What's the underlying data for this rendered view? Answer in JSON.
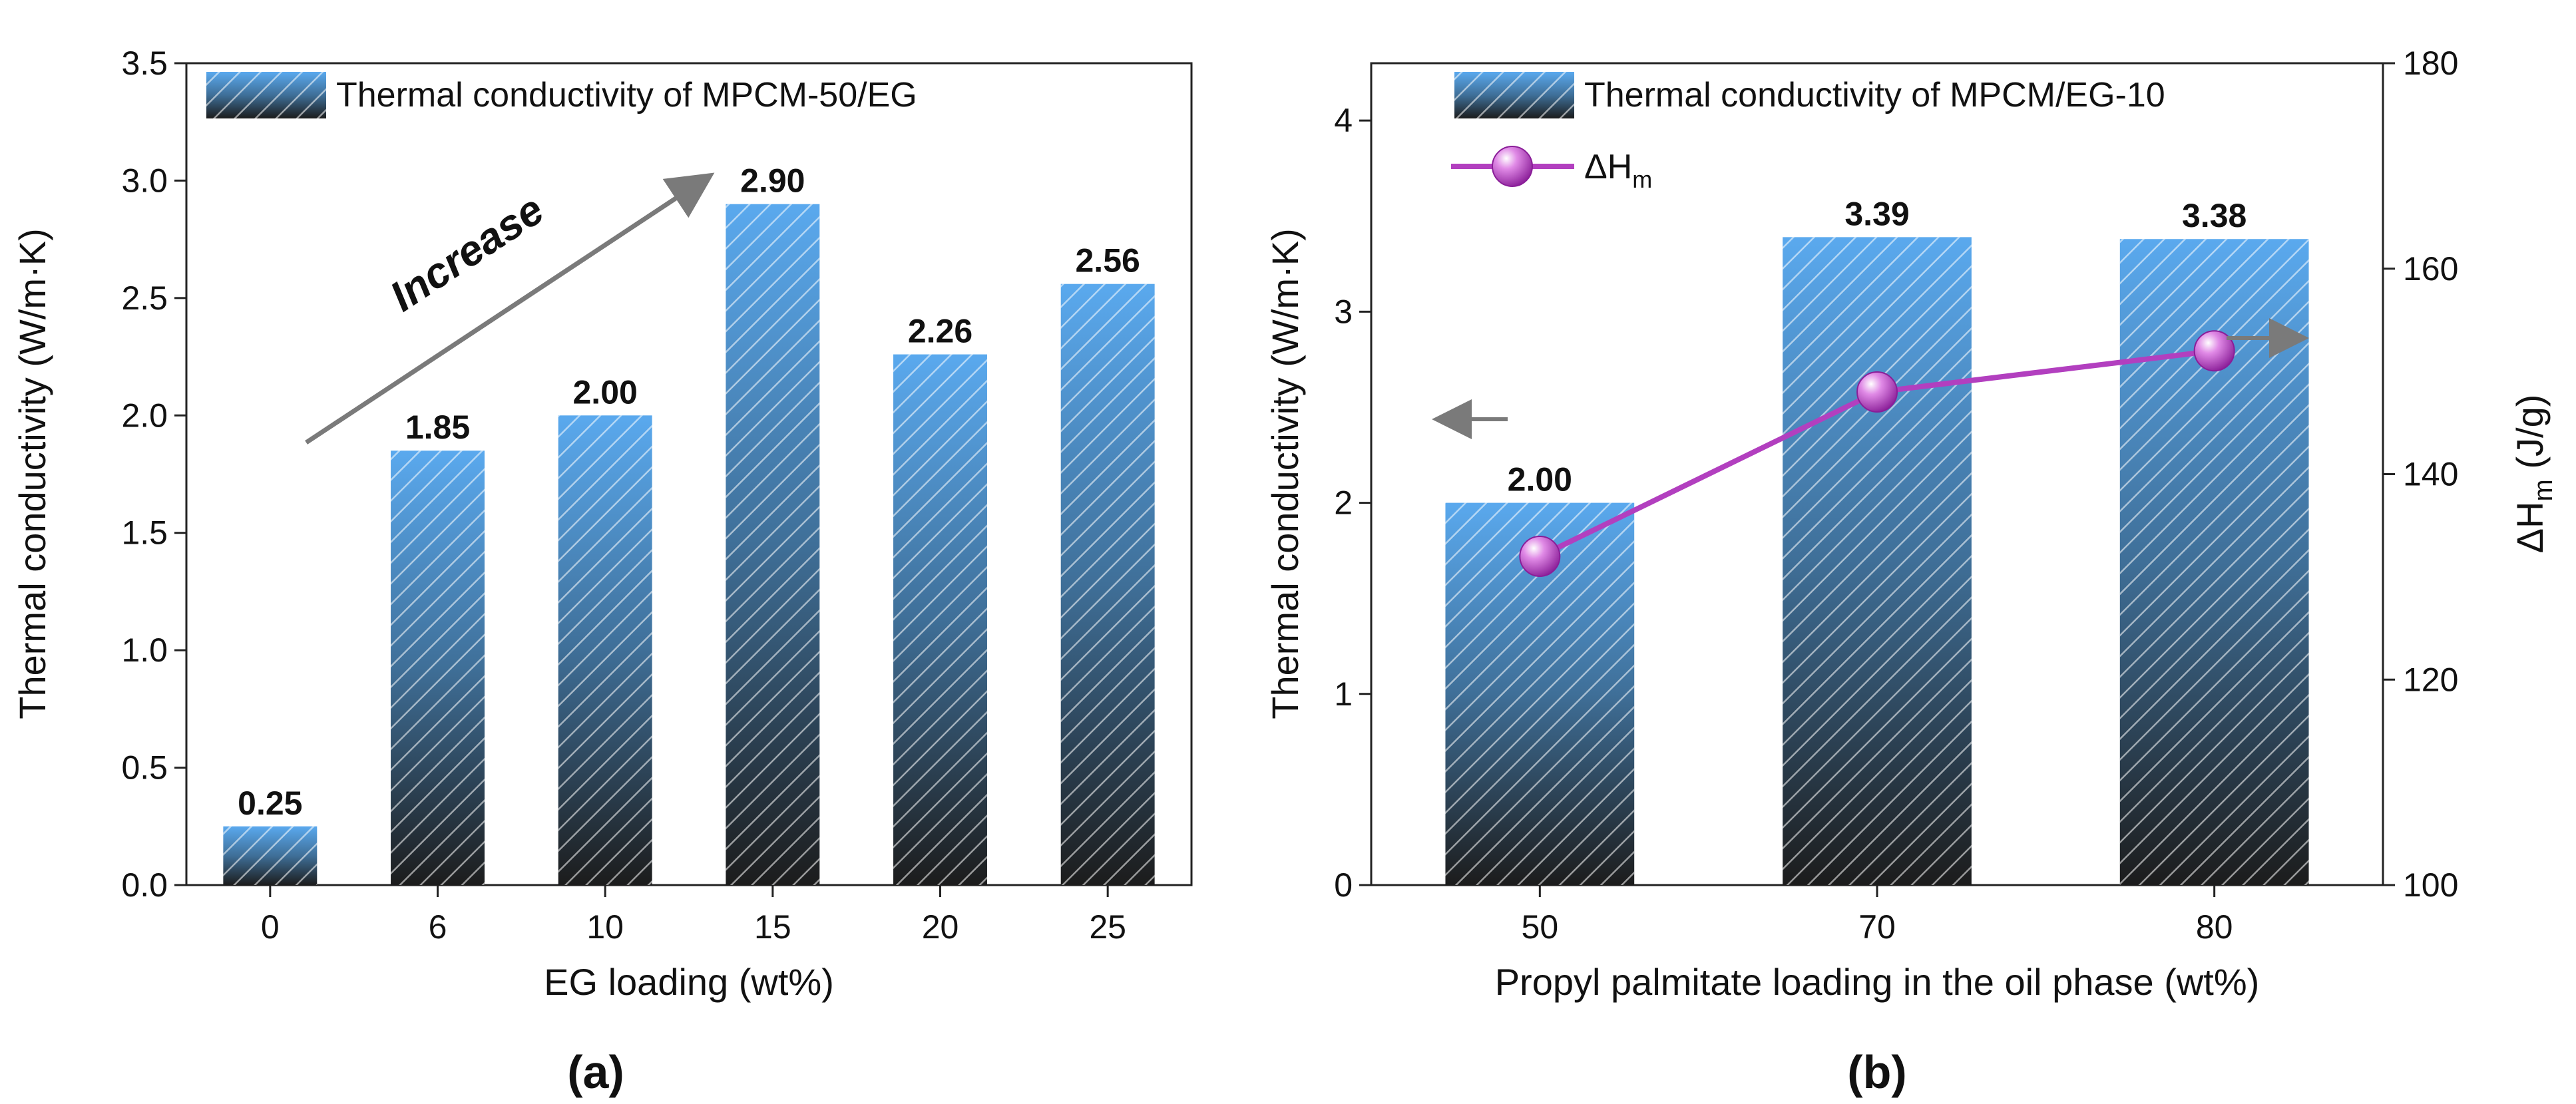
{
  "chart_data": [
    {
      "panel_label": "(a)",
      "type": "bar",
      "xlabel": "EG loading (wt%)",
      "ylabel": "Thermal conductivity (W/m·K)",
      "categories": [
        "0",
        "6",
        "10",
        "15",
        "20",
        "25"
      ],
      "series": [
        {
          "name": "Thermal conductivity of MPCM-50/EG",
          "values": [
            0.25,
            1.85,
            2.0,
            2.9,
            2.26,
            2.56
          ],
          "labels": [
            "0.25",
            "1.85",
            "2.00",
            "2.90",
            "2.26",
            "2.56"
          ]
        }
      ],
      "ylim": [
        0,
        3.5
      ],
      "yticks": [
        "0.0",
        "0.5",
        "1.0",
        "1.5",
        "2.0",
        "2.5",
        "3.0",
        "3.5"
      ],
      "annotations": [
        {
          "text": "Increase"
        }
      ],
      "legend_position": "top-left",
      "grid": false
    },
    {
      "panel_label": "(b)",
      "type": "bar",
      "xlabel": "Propyl palmitate loading in the oil phase (wt%)",
      "ylabel": "Thermal conductivity (W/m·K)",
      "y2label_main": "ΔH",
      "y2label_sub": "m",
      "y2label_unit": "(J/g)",
      "categories": [
        "50",
        "70",
        "80"
      ],
      "series": [
        {
          "name": "Thermal conductivity of MPCM/EG-10",
          "type": "bar",
          "axis": "left",
          "values": [
            2.0,
            3.39,
            3.38
          ],
          "labels": [
            "2.00",
            "3.39",
            "3.38"
          ]
        },
        {
          "name_main": "ΔH",
          "name_sub": "m",
          "type": "line",
          "axis": "right",
          "values": [
            132,
            148,
            152
          ],
          "color": "#b23fbf"
        }
      ],
      "ylim": [
        0,
        4.3
      ],
      "yticks": [
        "0",
        "1",
        "2",
        "3",
        "4"
      ],
      "y2lim": [
        100,
        180
      ],
      "y2ticks": [
        "100",
        "120",
        "140",
        "160",
        "180"
      ],
      "legend_position": "top-left",
      "grid": false
    }
  ],
  "colors": {
    "bar_top": "#5aa9ee",
    "bar_bottom": "#1c1c1c",
    "line": "#b23fbf",
    "arrow": "#7a7a7a"
  }
}
